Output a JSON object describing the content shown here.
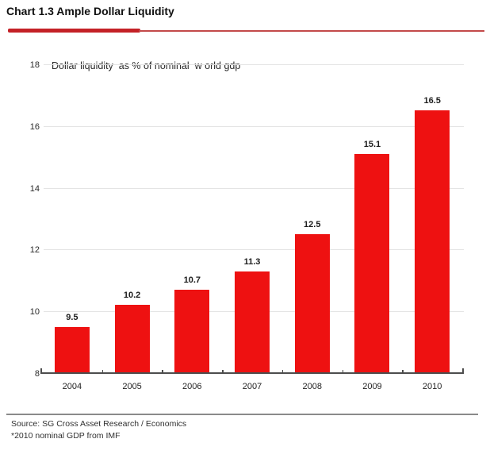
{
  "header": {
    "title": "Chart 1.3 Ample Dollar Liquidity"
  },
  "chart_data": {
    "type": "bar",
    "title": "Dollar liquidity  as % of nominal  w orld gdp",
    "categories": [
      "2004",
      "2005",
      "2006",
      "2007",
      "2008",
      "2009",
      "2010"
    ],
    "values": [
      9.5,
      10.2,
      10.7,
      11.3,
      12.5,
      15.1,
      16.5
    ],
    "xlabel": "",
    "ylabel": "",
    "ylim": [
      8,
      18
    ],
    "yticks": [
      8,
      10,
      12,
      14,
      16,
      18
    ],
    "grid": "horizontal-light",
    "legend_position": "none",
    "bar_color": "#ee1111",
    "data_labels": [
      "9.5",
      "10.2",
      "10.7",
      "11.3",
      "12.5",
      "15.1",
      "16.5"
    ]
  },
  "footer": {
    "source": "Source: SG Cross Asset Research / Economics",
    "note": "*2010 nominal GDP from IMF"
  },
  "colors": {
    "bar": "#ee1111",
    "rule_thick": "#c42127",
    "rule_thin": "#c34a4a",
    "gridline": "#e4e4e4",
    "axis": "#4d4d4d",
    "footer_divider": "#8a8a8a"
  }
}
